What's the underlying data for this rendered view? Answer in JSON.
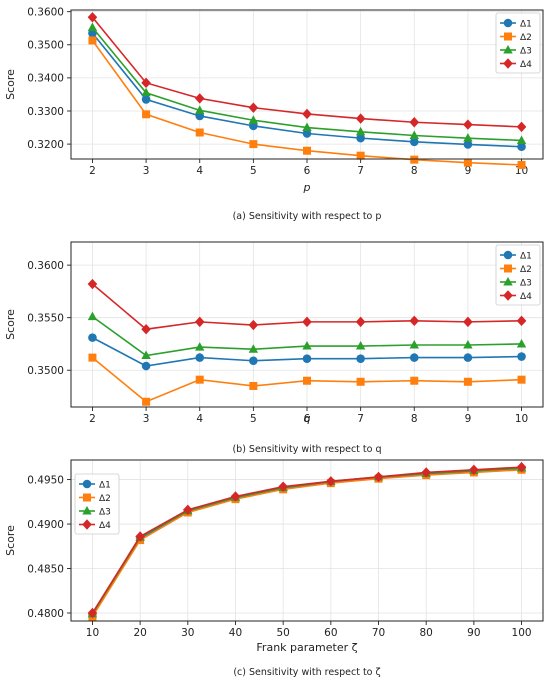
{
  "chart_data": [
    {
      "type": "line",
      "xlabel": "p",
      "ylabel": "Score",
      "caption": "(a) Sensitivity with respect to p",
      "x": [
        2,
        3,
        4,
        5,
        6,
        7,
        8,
        9,
        10
      ],
      "xticks": [
        "2",
        "3",
        "4",
        "5",
        "6",
        "7",
        "8",
        "9",
        "10"
      ],
      "yticks": [
        "0.3200",
        "0.3300",
        "0.3400",
        "0.3500",
        "0.3600"
      ],
      "ytick_values": [
        0.32,
        0.33,
        0.34,
        0.35,
        0.36
      ],
      "xlim": [
        1.6,
        10.4
      ],
      "ylim": [
        0.3155,
        0.3605
      ],
      "grid": true,
      "legend_position": "top-right",
      "series": [
        {
          "name": "Δ1",
          "color": "#1f77b4",
          "marker": "circle",
          "values": [
            0.3535,
            0.3335,
            0.3285,
            0.3255,
            0.3232,
            0.3218,
            0.3207,
            0.3199,
            0.3192
          ]
        },
        {
          "name": "Δ2",
          "color": "#ff7f0e",
          "marker": "square",
          "values": [
            0.3513,
            0.329,
            0.3235,
            0.32,
            0.318,
            0.3165,
            0.3153,
            0.3144,
            0.3137
          ]
        },
        {
          "name": "Δ3",
          "color": "#2ca02c",
          "marker": "triangle",
          "values": [
            0.3552,
            0.3355,
            0.3302,
            0.3272,
            0.325,
            0.3237,
            0.3226,
            0.3218,
            0.3211
          ]
        },
        {
          "name": "Δ4",
          "color": "#d62728",
          "marker": "diamond",
          "values": [
            0.3583,
            0.3385,
            0.3338,
            0.331,
            0.3291,
            0.3277,
            0.3266,
            0.3259,
            0.3252
          ]
        }
      ]
    },
    {
      "type": "line",
      "xlabel": "q",
      "ylabel": "Score",
      "caption": "(b) Sensitivity with respect to q",
      "x": [
        2,
        3,
        4,
        5,
        6,
        7,
        8,
        9,
        10
      ],
      "xticks": [
        "2",
        "3",
        "4",
        "5",
        "6",
        "7",
        "8",
        "9",
        "10"
      ],
      "yticks": [
        "0.3500",
        "0.3550",
        "0.3600"
      ],
      "ytick_values": [
        0.35,
        0.355,
        0.36
      ],
      "xlim": [
        1.6,
        10.4
      ],
      "ylim": [
        0.3465,
        0.3622
      ],
      "grid": true,
      "legend_position": "top-right",
      "series": [
        {
          "name": "Δ1",
          "color": "#1f77b4",
          "marker": "circle",
          "values": [
            0.3531,
            0.3504,
            0.3512,
            0.3509,
            0.3511,
            0.3511,
            0.3512,
            0.3512,
            0.3513
          ]
        },
        {
          "name": "Δ2",
          "color": "#ff7f0e",
          "marker": "square",
          "values": [
            0.3512,
            0.347,
            0.3491,
            0.3485,
            0.349,
            0.3489,
            0.349,
            0.3489,
            0.3491
          ]
        },
        {
          "name": "Δ3",
          "color": "#2ca02c",
          "marker": "triangle",
          "values": [
            0.3551,
            0.3514,
            0.3522,
            0.352,
            0.3523,
            0.3523,
            0.3524,
            0.3524,
            0.3525
          ]
        },
        {
          "name": "Δ4",
          "color": "#d62728",
          "marker": "diamond",
          "values": [
            0.3582,
            0.3539,
            0.3546,
            0.3543,
            0.3546,
            0.3546,
            0.3547,
            0.3546,
            0.3547
          ]
        }
      ]
    },
    {
      "type": "line",
      "xlabel": "Frank parameter ζ",
      "ylabel": "Score",
      "caption": "(c) Sensitivity with respect to ζ",
      "x": [
        10,
        20,
        30,
        40,
        50,
        60,
        70,
        80,
        90,
        100
      ],
      "xticks": [
        "10",
        "20",
        "30",
        "40",
        "50",
        "60",
        "70",
        "80",
        "90",
        "100"
      ],
      "yticks": [
        "0.4800",
        "0.4850",
        "0.4900",
        "0.4950"
      ],
      "ytick_values": [
        0.48,
        0.485,
        0.49,
        0.495
      ],
      "xlim": [
        5.5,
        104.5
      ],
      "ylim": [
        0.4791,
        0.4972
      ],
      "grid": true,
      "legend_position": "top-left",
      "series": [
        {
          "name": "Δ1",
          "color": "#1f77b4",
          "marker": "circle",
          "values": [
            0.4798,
            0.4884,
            0.4914,
            0.4929,
            0.494,
            0.4947,
            0.4952,
            0.4956,
            0.4959,
            0.4962
          ]
        },
        {
          "name": "Δ2",
          "color": "#ff7f0e",
          "marker": "square",
          "values": [
            0.4796,
            0.4882,
            0.4913,
            0.4928,
            0.4939,
            0.4946,
            0.4951,
            0.4955,
            0.4958,
            0.4961
          ]
        },
        {
          "name": "Δ3",
          "color": "#2ca02c",
          "marker": "triangle",
          "values": [
            0.4799,
            0.4885,
            0.4915,
            0.493,
            0.4941,
            0.4948,
            0.4953,
            0.4957,
            0.496,
            0.4963
          ]
        },
        {
          "name": "Δ4",
          "color": "#d62728",
          "marker": "diamond",
          "values": [
            0.48,
            0.4886,
            0.4916,
            0.4931,
            0.4942,
            0.4948,
            0.4953,
            0.4958,
            0.4961,
            0.4964
          ]
        }
      ]
    }
  ]
}
